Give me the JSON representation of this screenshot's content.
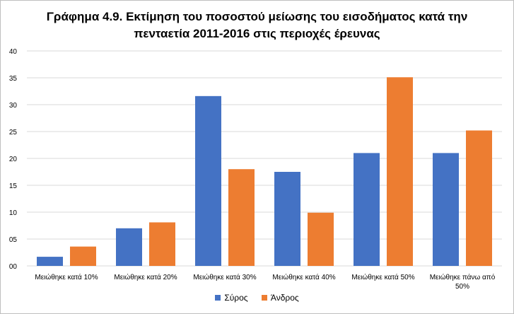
{
  "chart_data": {
    "type": "bar",
    "title_line1": "Γράφημα 4.9. Εκτίμηση του ποσοστού μείωσης του εισοδήματος κατά την",
    "title_line2": "πενταετία 2011-2016 στις περιοχές έρευνας",
    "categories": [
      [
        "Μειώθηκε κατά 10%"
      ],
      [
        "Μειώθηκε κατά 20%"
      ],
      [
        "Μειώθηκε κατά 30%"
      ],
      [
        "Μειώθηκε κατά 40%"
      ],
      [
        "Μειώθηκε κατά 50%"
      ],
      [
        "Μειώθηκε πάνω από",
        "50%"
      ]
    ],
    "series": [
      {
        "name": "Σύρος",
        "color": "#4472c4",
        "values": [
          1.7,
          7.0,
          31.6,
          17.5,
          21.0,
          21.0
        ]
      },
      {
        "name": "Άνδρος",
        "color": "#ed7d31",
        "values": [
          3.6,
          8.1,
          18.0,
          9.9,
          35.1,
          25.2
        ]
      }
    ],
    "yticks": [
      "00",
      "05",
      "10",
      "15",
      "20",
      "25",
      "30",
      "35",
      "40"
    ],
    "ylim": [
      0,
      40
    ],
    "grid": true,
    "legend_position": "bottom"
  }
}
